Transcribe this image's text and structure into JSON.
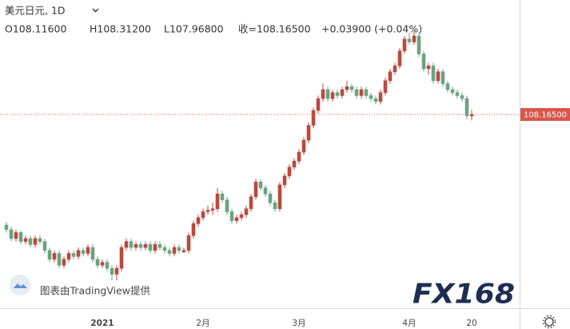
{
  "chart_data": {
    "type": "candlestick",
    "header": {
      "symbol": "美元日元, 1D",
      "open": "O108.11600",
      "high": "H108.31200",
      "low": "L107.96800",
      "close": "收=108.16500",
      "change": "+0.03900 (+0.04%)"
    },
    "watermark": "图表由TradingView提供",
    "logo": "FX168",
    "last_price_label": "108.16500",
    "up_color": "#b84a3e",
    "down_color": "#6aa383",
    "last_price_color": "#d9564a",
    "ylim": [
      101.66,
      112.01
    ],
    "categories": [
      null,
      null,
      null,
      null,
      null,
      null,
      null,
      null,
      null,
      null,
      null,
      null,
      null,
      null,
      null,
      null,
      null,
      null,
      null,
      null,
      "2021",
      null,
      null,
      null,
      null,
      null,
      null,
      null,
      null,
      null,
      null,
      null,
      null,
      null,
      null,
      null,
      null,
      null,
      null,
      null,
      null,
      "2月",
      null,
      null,
      null,
      null,
      null,
      null,
      null,
      null,
      null,
      null,
      null,
      null,
      null,
      null,
      null,
      null,
      null,
      null,
      null,
      "3月",
      null,
      null,
      null,
      null,
      null,
      null,
      null,
      null,
      null,
      null,
      null,
      null,
      null,
      null,
      null,
      null,
      null,
      null,
      null,
      null,
      null,
      null,
      "4月",
      null,
      null,
      null,
      null,
      null,
      null,
      null,
      null,
      null,
      null,
      null,
      null,
      "20"
    ],
    "candles": [
      [
        104.45,
        104.55,
        104.2,
        104.3
      ],
      [
        104.3,
        104.4,
        103.9,
        104.0
      ],
      [
        104.0,
        104.3,
        103.9,
        104.2
      ],
      [
        104.2,
        104.25,
        103.8,
        103.9
      ],
      [
        103.9,
        104.1,
        103.8,
        104.0
      ],
      [
        104.0,
        104.1,
        103.7,
        103.8
      ],
      [
        103.8,
        104.1,
        103.7,
        104.0
      ],
      [
        104.0,
        104.1,
        103.8,
        103.9
      ],
      [
        103.9,
        104.0,
        103.5,
        103.6
      ],
      [
        103.6,
        103.7,
        103.2,
        103.3
      ],
      [
        103.3,
        103.6,
        103.2,
        103.5
      ],
      [
        103.5,
        103.6,
        103.0,
        103.1
      ],
      [
        103.1,
        103.4,
        103.0,
        103.3
      ],
      [
        103.3,
        103.6,
        103.2,
        103.5
      ],
      [
        103.5,
        103.6,
        103.3,
        103.4
      ],
      [
        103.4,
        103.7,
        103.3,
        103.6
      ],
      [
        103.6,
        103.7,
        103.4,
        103.5
      ],
      [
        103.5,
        103.8,
        103.4,
        103.7
      ],
      [
        103.7,
        103.8,
        103.2,
        103.3
      ],
      [
        103.3,
        103.4,
        103.0,
        103.1
      ],
      [
        103.1,
        103.3,
        103.0,
        103.2
      ],
      [
        103.2,
        103.3,
        102.9,
        103.0
      ],
      [
        103.0,
        103.1,
        102.6,
        102.8
      ],
      [
        102.8,
        103.1,
        102.6,
        103.0
      ],
      [
        103.0,
        103.8,
        102.9,
        103.7
      ],
      [
        103.7,
        104.0,
        103.6,
        103.9
      ],
      [
        103.9,
        104.0,
        103.6,
        103.7
      ],
      [
        103.7,
        103.9,
        103.6,
        103.8
      ],
      [
        103.8,
        103.9,
        103.6,
        103.7
      ],
      [
        103.7,
        103.9,
        103.6,
        103.8
      ],
      [
        103.8,
        103.9,
        103.5,
        103.6
      ],
      [
        103.6,
        103.9,
        103.5,
        103.8
      ],
      [
        103.8,
        103.9,
        103.6,
        103.7
      ],
      [
        103.7,
        103.8,
        103.5,
        103.6
      ],
      [
        103.6,
        103.7,
        103.4,
        103.5
      ],
      [
        103.5,
        103.8,
        103.4,
        103.7
      ],
      [
        103.7,
        103.8,
        103.5,
        103.6
      ],
      [
        103.55,
        103.7,
        103.5,
        103.6
      ],
      [
        103.6,
        104.2,
        103.5,
        104.1
      ],
      [
        104.1,
        104.6,
        104.0,
        104.5
      ],
      [
        104.5,
        104.8,
        104.4,
        104.7
      ],
      [
        104.7,
        105.0,
        104.6,
        104.9
      ],
      [
        104.9,
        105.1,
        104.8,
        104.95
      ],
      [
        104.95,
        105.2,
        104.8,
        105.0
      ],
      [
        105.0,
        105.7,
        104.9,
        105.5
      ],
      [
        105.5,
        105.6,
        105.2,
        105.3
      ],
      [
        105.3,
        105.4,
        104.8,
        104.9
      ],
      [
        104.9,
        105.0,
        104.5,
        104.6
      ],
      [
        104.6,
        104.8,
        104.5,
        104.7
      ],
      [
        104.7,
        104.9,
        104.6,
        104.8
      ],
      [
        104.8,
        105.1,
        104.7,
        105.0
      ],
      [
        105.0,
        105.5,
        104.9,
        105.4
      ],
      [
        105.4,
        106.0,
        105.3,
        105.9
      ],
      [
        105.9,
        106.0,
        105.6,
        105.7
      ],
      [
        105.7,
        105.8,
        105.4,
        105.5
      ],
      [
        105.5,
        105.6,
        105.1,
        105.2
      ],
      [
        105.2,
        105.3,
        104.9,
        105.0
      ],
      [
        105.0,
        105.9,
        104.9,
        105.8
      ],
      [
        105.8,
        106.2,
        105.7,
        106.1
      ],
      [
        106.1,
        106.5,
        106.0,
        106.4
      ],
      [
        106.4,
        106.7,
        106.3,
        106.6
      ],
      [
        106.6,
        107.0,
        106.5,
        106.9
      ],
      [
        106.9,
        107.4,
        106.8,
        107.3
      ],
      [
        107.3,
        107.9,
        107.2,
        107.8
      ],
      [
        107.8,
        108.4,
        107.7,
        108.3
      ],
      [
        108.3,
        108.8,
        108.2,
        108.7
      ],
      [
        108.7,
        109.2,
        108.6,
        109.0
      ],
      [
        109.0,
        109.1,
        108.6,
        108.7
      ],
      [
        108.7,
        109.0,
        108.6,
        108.9
      ],
      [
        108.9,
        109.0,
        108.7,
        108.8
      ],
      [
        108.8,
        109.1,
        108.7,
        109.0
      ],
      [
        109.0,
        109.3,
        108.9,
        109.1
      ],
      [
        109.1,
        109.2,
        108.9,
        109.0
      ],
      [
        109.0,
        109.1,
        108.7,
        108.8
      ],
      [
        108.8,
        109.1,
        108.7,
        109.0
      ],
      [
        109.0,
        109.1,
        108.7,
        108.8
      ],
      [
        108.8,
        108.9,
        108.6,
        108.7
      ],
      [
        108.7,
        108.8,
        108.5,
        108.6
      ],
      [
        108.6,
        109.0,
        108.5,
        108.9
      ],
      [
        108.9,
        109.4,
        108.8,
        109.3
      ],
      [
        109.3,
        109.7,
        109.2,
        109.6
      ],
      [
        109.6,
        109.9,
        109.5,
        109.8
      ],
      [
        109.8,
        110.4,
        109.7,
        110.3
      ],
      [
        110.3,
        110.8,
        110.2,
        110.7
      ],
      [
        110.7,
        110.9,
        110.5,
        110.6
      ],
      [
        110.6,
        110.97,
        110.5,
        110.8
      ],
      [
        110.8,
        110.9,
        110.1,
        110.2
      ],
      [
        110.2,
        110.3,
        109.6,
        109.7
      ],
      [
        109.7,
        109.9,
        109.5,
        109.8
      ],
      [
        109.8,
        109.9,
        109.2,
        109.3
      ],
      [
        109.3,
        109.7,
        109.2,
        109.6
      ],
      [
        109.6,
        109.7,
        109.1,
        109.2
      ],
      [
        109.2,
        109.3,
        108.9,
        109.0
      ],
      [
        109.0,
        109.1,
        108.8,
        108.9
      ],
      [
        108.9,
        109.0,
        108.7,
        108.8
      ],
      [
        108.8,
        108.9,
        108.6,
        108.7
      ],
      [
        108.7,
        108.8,
        108.0,
        108.12
      ],
      [
        108.116,
        108.312,
        107.968,
        108.165
      ]
    ]
  }
}
